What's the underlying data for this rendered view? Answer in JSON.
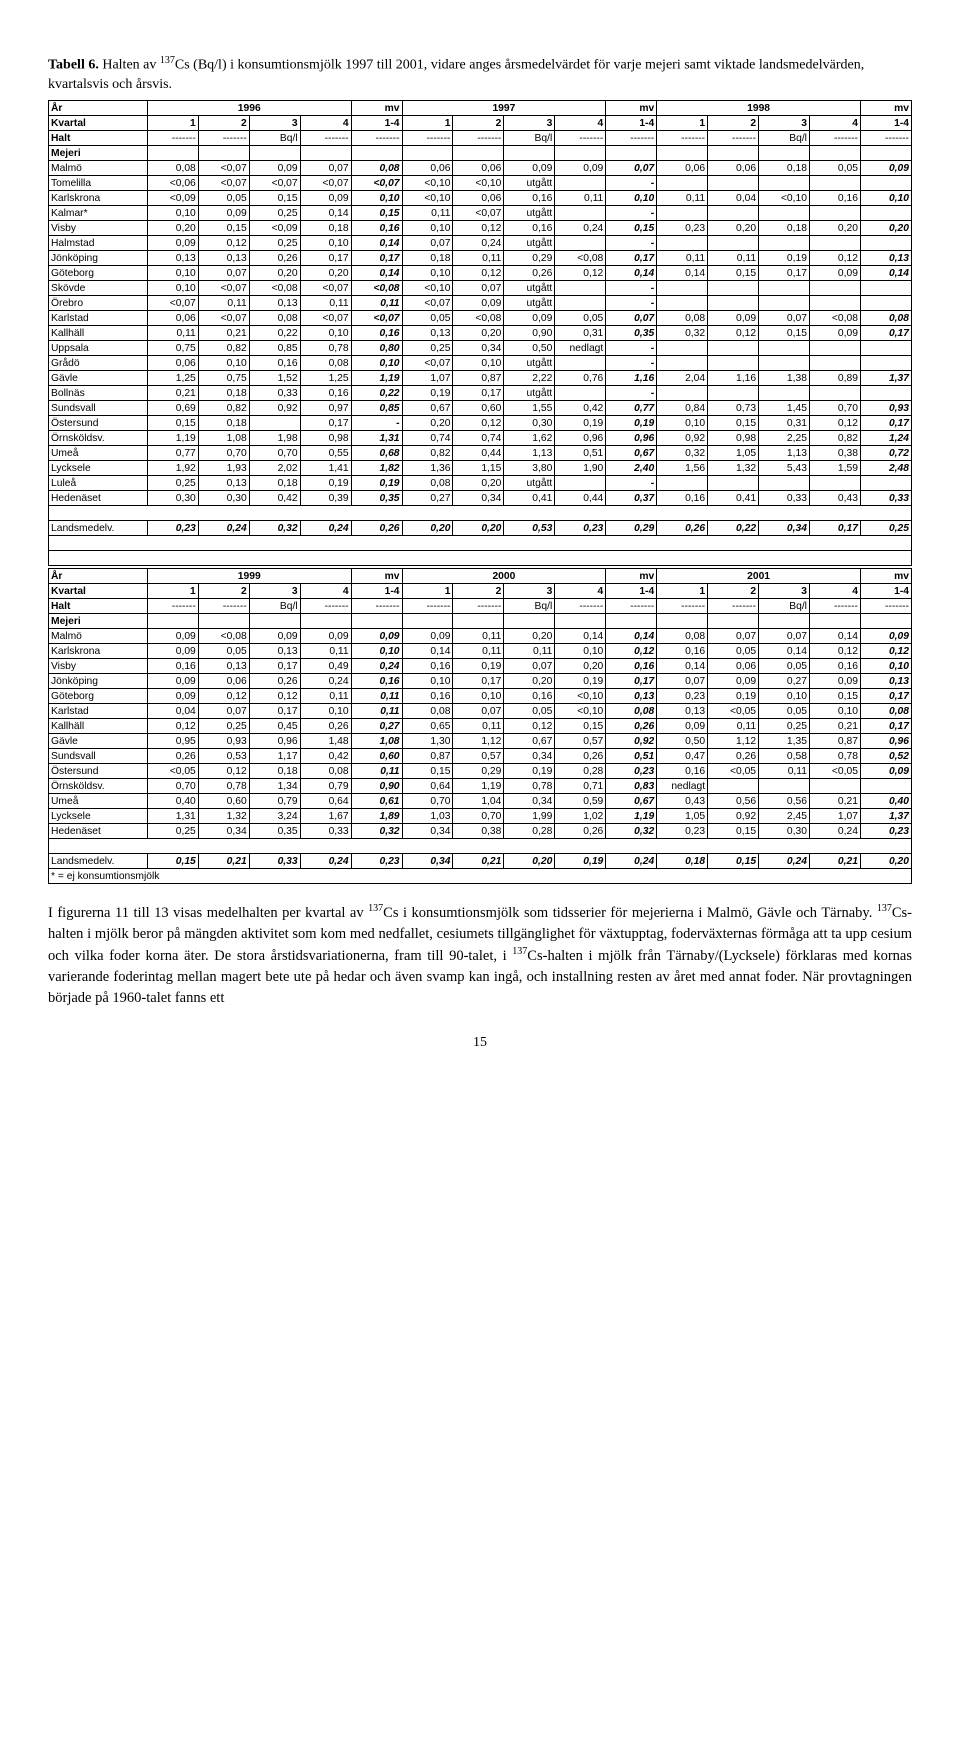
{
  "caption_bold": "Tabell 6.",
  "caption_rest_a": " Halten av ",
  "caption_cs": "137",
  "caption_rest_b": "Cs (Bq/l) i konsumtionsmjölk 1997 till 2001, vidare anges årsmedelvärdet för varje mejeri samt viktade landsmedelvärden, kvartalsvis och årsvis.",
  "header": {
    "year_label": "År",
    "quarter_label": "Kvartal",
    "halt_label": "Halt",
    "mejeri_label": "Mejeri",
    "mv": "mv",
    "quarters": [
      "1",
      "2",
      "3",
      "4",
      "1-4"
    ],
    "bq": "Bq/l",
    "dash": "-------"
  },
  "table1": {
    "years": [
      "1996",
      "1997",
      "1998"
    ],
    "rows": [
      {
        "name": "Malmö",
        "a": [
          "0,08",
          "<0,07",
          "0,09",
          "0,07",
          "0,08"
        ],
        "b": [
          "0,06",
          "0,06",
          "0,09",
          "0,09",
          "0,07"
        ],
        "c": [
          "0,06",
          "0,06",
          "0,18",
          "0,05",
          "0,09"
        ]
      },
      {
        "name": "Tomelilla",
        "a": [
          "<0,06",
          "<0,07",
          "<0,07",
          "<0,07",
          "<0,07"
        ],
        "b": [
          "<0,10",
          "<0,10",
          "utgått",
          "",
          "-"
        ],
        "c": [
          "",
          "",
          "",
          "",
          ""
        ]
      },
      {
        "name": "Karlskrona",
        "a": [
          "<0,09",
          "0,05",
          "0,15",
          "0,09",
          "0,10"
        ],
        "b": [
          "<0,10",
          "0,06",
          "0,16",
          "0,11",
          "0,10"
        ],
        "c": [
          "0,11",
          "0,04",
          "<0,10",
          "0,16",
          "0,10"
        ]
      },
      {
        "name": "Kalmar*",
        "a": [
          "0,10",
          "0,09",
          "0,25",
          "0,14",
          "0,15"
        ],
        "b": [
          "0,11",
          "<0,07",
          "utgått",
          "",
          "-"
        ],
        "c": [
          "",
          "",
          "",
          "",
          ""
        ]
      },
      {
        "name": "Visby",
        "a": [
          "0,20",
          "0,15",
          "<0,09",
          "0,18",
          "0,16"
        ],
        "b": [
          "0,10",
          "0,12",
          "0,16",
          "0,24",
          "0,15"
        ],
        "c": [
          "0,23",
          "0,20",
          "0,18",
          "0,20",
          "0,20"
        ]
      },
      {
        "name": "Halmstad",
        "a": [
          "0,09",
          "0,12",
          "0,25",
          "0,10",
          "0,14"
        ],
        "b": [
          "0,07",
          "0,24",
          "utgått",
          "",
          "-"
        ],
        "c": [
          "",
          "",
          "",
          "",
          ""
        ]
      },
      {
        "name": "Jönköping",
        "a": [
          "0,13",
          "0,13",
          "0,26",
          "0,17",
          "0,17"
        ],
        "b": [
          "0,18",
          "0,11",
          "0,29",
          "<0,08",
          "0,17"
        ],
        "c": [
          "0,11",
          "0,11",
          "0,19",
          "0,12",
          "0,13"
        ]
      },
      {
        "name": "Göteborg",
        "a": [
          "0,10",
          "0,07",
          "0,20",
          "0,20",
          "0,14"
        ],
        "b": [
          "0,10",
          "0,12",
          "0,26",
          "0,12",
          "0,14"
        ],
        "c": [
          "0,14",
          "0,15",
          "0,17",
          "0,09",
          "0,14"
        ]
      },
      {
        "name": "Skövde",
        "a": [
          "0,10",
          "<0,07",
          "<0,08",
          "<0,07",
          "<0,08"
        ],
        "b": [
          "<0,10",
          "0,07",
          "utgått",
          "",
          "-"
        ],
        "c": [
          "",
          "",
          "",
          "",
          ""
        ]
      },
      {
        "name": "Örebro",
        "a": [
          "<0,07",
          "0,11",
          "0,13",
          "0,11",
          "0,11"
        ],
        "b": [
          "<0,07",
          "0,09",
          "utgått",
          "",
          "-"
        ],
        "c": [
          "",
          "",
          "",
          "",
          ""
        ]
      },
      {
        "name": "Karlstad",
        "a": [
          "0,06",
          "<0,07",
          "0,08",
          "<0,07",
          "<0,07"
        ],
        "b": [
          "0,05",
          "<0,08",
          "0,09",
          "0,05",
          "0,07"
        ],
        "c": [
          "0,08",
          "0,09",
          "0,07",
          "<0,08",
          "0,08"
        ]
      },
      {
        "name": "Kallhäll",
        "a": [
          "0,11",
          "0,21",
          "0,22",
          "0,10",
          "0,16"
        ],
        "b": [
          "0,13",
          "0,20",
          "0,90",
          "0,31",
          "0,35"
        ],
        "c": [
          "0,32",
          "0,12",
          "0,15",
          "0,09",
          "0,17"
        ]
      },
      {
        "name": "Uppsala",
        "a": [
          "0,75",
          "0,82",
          "0,85",
          "0,78",
          "0,80"
        ],
        "b": [
          "0,25",
          "0,34",
          "0,50",
          "nedlagt",
          "-"
        ],
        "c": [
          "",
          "",
          "",
          "",
          ""
        ]
      },
      {
        "name": "Grådö",
        "a": [
          "0,06",
          "0,10",
          "0,16",
          "0,08",
          "0,10"
        ],
        "b": [
          "<0,07",
          "0,10",
          "utgått",
          "",
          "-"
        ],
        "c": [
          "",
          "",
          "",
          "",
          ""
        ]
      },
      {
        "name": "Gävle",
        "a": [
          "1,25",
          "0,75",
          "1,52",
          "1,25",
          "1,19"
        ],
        "b": [
          "1,07",
          "0,87",
          "2,22",
          "0,76",
          "1,16"
        ],
        "c": [
          "2,04",
          "1,16",
          "1,38",
          "0,89",
          "1,37"
        ]
      },
      {
        "name": "Bollnäs",
        "a": [
          "0,21",
          "0,18",
          "0,33",
          "0,16",
          "0,22"
        ],
        "b": [
          "0,19",
          "0,17",
          "utgått",
          "",
          "-"
        ],
        "c": [
          "",
          "",
          "",
          "",
          ""
        ]
      },
      {
        "name": "Sundsvall",
        "a": [
          "0,69",
          "0,82",
          "0,92",
          "0,97",
          "0,85"
        ],
        "b": [
          "0,67",
          "0,60",
          "1,55",
          "0,42",
          "0,77"
        ],
        "c": [
          "0,84",
          "0,73",
          "1,45",
          "0,70",
          "0,93"
        ]
      },
      {
        "name": "Östersund",
        "a": [
          "0,15",
          "0,18",
          "",
          "0,17",
          "-"
        ],
        "b": [
          "0,20",
          "0,12",
          "0,30",
          "0,19",
          "0,19"
        ],
        "c": [
          "0,10",
          "0,15",
          "0,31",
          "0,12",
          "0,17"
        ]
      },
      {
        "name": "Örnsköldsv.",
        "a": [
          "1,19",
          "1,08",
          "1,98",
          "0,98",
          "1,31"
        ],
        "b": [
          "0,74",
          "0,74",
          "1,62",
          "0,96",
          "0,96"
        ],
        "c": [
          "0,92",
          "0,98",
          "2,25",
          "0,82",
          "1,24"
        ]
      },
      {
        "name": "Umeå",
        "a": [
          "0,77",
          "0,70",
          "0,70",
          "0,55",
          "0,68"
        ],
        "b": [
          "0,82",
          "0,44",
          "1,13",
          "0,51",
          "0,67"
        ],
        "c": [
          "0,32",
          "1,05",
          "1,13",
          "0,38",
          "0,72"
        ]
      },
      {
        "name": "Lycksele",
        "a": [
          "1,92",
          "1,93",
          "2,02",
          "1,41",
          "1,82"
        ],
        "b": [
          "1,36",
          "1,15",
          "3,80",
          "1,90",
          "2,40"
        ],
        "c": [
          "1,56",
          "1,32",
          "5,43",
          "1,59",
          "2,48"
        ]
      },
      {
        "name": "Luleå",
        "a": [
          "0,25",
          "0,13",
          "0,18",
          "0,19",
          "0,19"
        ],
        "b": [
          "0,08",
          "0,20",
          "utgått",
          "",
          "-"
        ],
        "c": [
          "",
          "",
          "",
          "",
          ""
        ]
      },
      {
        "name": "Hedenäset",
        "a": [
          "0,30",
          "0,30",
          "0,42",
          "0,39",
          "0,35"
        ],
        "b": [
          "0,27",
          "0,34",
          "0,41",
          "0,44",
          "0,37"
        ],
        "c": [
          "0,16",
          "0,41",
          "0,33",
          "0,43",
          "0,33"
        ]
      }
    ],
    "landsmedel": {
      "name": "Landsmedelv.",
      "a": [
        "0,23",
        "0,24",
        "0,32",
        "0,24",
        "0,26"
      ],
      "b": [
        "0,20",
        "0,20",
        "0,53",
        "0,23",
        "0,29"
      ],
      "c": [
        "0,26",
        "0,22",
        "0,34",
        "0,17",
        "0,25"
      ]
    }
  },
  "table2": {
    "years": [
      "1999",
      "2000",
      "2001"
    ],
    "rows": [
      {
        "name": "Malmö",
        "a": [
          "0,09",
          "<0,08",
          "0,09",
          "0,09",
          "0,09"
        ],
        "b": [
          "0,09",
          "0,11",
          "0,20",
          "0,14",
          "0,14"
        ],
        "c": [
          "0,08",
          "0,07",
          "0,07",
          "0,14",
          "0,09"
        ]
      },
      {
        "name": "Karlskrona",
        "a": [
          "0,09",
          "0,05",
          "0,13",
          "0,11",
          "0,10"
        ],
        "b": [
          "0,14",
          "0,11",
          "0,11",
          "0,10",
          "0,12"
        ],
        "c": [
          "0,16",
          "0,05",
          "0,14",
          "0,12",
          "0,12"
        ]
      },
      {
        "name": "Visby",
        "a": [
          "0,16",
          "0,13",
          "0,17",
          "0,49",
          "0,24"
        ],
        "b": [
          "0,16",
          "0,19",
          "0,07",
          "0,20",
          "0,16"
        ],
        "c": [
          "0,14",
          "0,06",
          "0,05",
          "0,16",
          "0,10"
        ]
      },
      {
        "name": "Jönköping",
        "a": [
          "0,09",
          "0,06",
          "0,26",
          "0,24",
          "0,16"
        ],
        "b": [
          "0,10",
          "0,17",
          "0,20",
          "0,19",
          "0,17"
        ],
        "c": [
          "0,07",
          "0,09",
          "0,27",
          "0,09",
          "0,13"
        ]
      },
      {
        "name": "Göteborg",
        "a": [
          "0,09",
          "0,12",
          "0,12",
          "0,11",
          "0,11"
        ],
        "b": [
          "0,16",
          "0,10",
          "0,16",
          "<0,10",
          "0,13"
        ],
        "c": [
          "0,23",
          "0,19",
          "0,10",
          "0,15",
          "0,17"
        ]
      },
      {
        "name": "Karlstad",
        "a": [
          "0,04",
          "0,07",
          "0,17",
          "0,10",
          "0,11"
        ],
        "b": [
          "0,08",
          "0,07",
          "0,05",
          "<0,10",
          "0,08"
        ],
        "c": [
          "0,13",
          "<0,05",
          "0,05",
          "0,10",
          "0,08"
        ]
      },
      {
        "name": "Kallhäll",
        "a": [
          "0,12",
          "0,25",
          "0,45",
          "0,26",
          "0,27"
        ],
        "b": [
          "0,65",
          "0,11",
          "0,12",
          "0,15",
          "0,26"
        ],
        "c": [
          "0,09",
          "0,11",
          "0,25",
          "0,21",
          "0,17"
        ]
      },
      {
        "name": "Gävle",
        "a": [
          "0,95",
          "0,93",
          "0,96",
          "1,48",
          "1,08"
        ],
        "b": [
          "1,30",
          "1,12",
          "0,67",
          "0,57",
          "0,92"
        ],
        "c": [
          "0,50",
          "1,12",
          "1,35",
          "0,87",
          "0,96"
        ]
      },
      {
        "name": "Sundsvall",
        "a": [
          "0,26",
          "0,53",
          "1,17",
          "0,42",
          "0,60"
        ],
        "b": [
          "0,87",
          "0,57",
          "0,34",
          "0,26",
          "0,51"
        ],
        "c": [
          "0,47",
          "0,26",
          "0,58",
          "0,78",
          "0,52"
        ]
      },
      {
        "name": "Östersund",
        "a": [
          "<0,05",
          "0,12",
          "0,18",
          "0,08",
          "0,11"
        ],
        "b": [
          "0,15",
          "0,29",
          "0,19",
          "0,28",
          "0,23"
        ],
        "c": [
          "0,16",
          "<0,05",
          "0,11",
          "<0,05",
          "0,09"
        ]
      },
      {
        "name": "Örnsköldsv.",
        "a": [
          "0,70",
          "0,78",
          "1,34",
          "0,79",
          "0,90"
        ],
        "b": [
          "0,64",
          "1,19",
          "0,78",
          "0,71",
          "0,83"
        ],
        "c": [
          "nedlagt",
          "",
          "",
          "",
          ""
        ]
      },
      {
        "name": "Umeå",
        "a": [
          "0,40",
          "0,60",
          "0,79",
          "0,64",
          "0,61"
        ],
        "b": [
          "0,70",
          "1,04",
          "0,34",
          "0,59",
          "0,67"
        ],
        "c": [
          "0,43",
          "0,56",
          "0,56",
          "0,21",
          "0,40"
        ]
      },
      {
        "name": "Lycksele",
        "a": [
          "1,31",
          "1,32",
          "3,24",
          "1,67",
          "1,89"
        ],
        "b": [
          "1,03",
          "0,70",
          "1,99",
          "1,02",
          "1,19"
        ],
        "c": [
          "1,05",
          "0,92",
          "2,45",
          "1,07",
          "1,37"
        ]
      },
      {
        "name": "Hedenäset",
        "a": [
          "0,25",
          "0,34",
          "0,35",
          "0,33",
          "0,32"
        ],
        "b": [
          "0,34",
          "0,38",
          "0,28",
          "0,26",
          "0,32"
        ],
        "c": [
          "0,23",
          "0,15",
          "0,30",
          "0,24",
          "0,23"
        ]
      }
    ],
    "landsmedel": {
      "name": "Landsmedelv.",
      "a": [
        "0,15",
        "0,21",
        "0,33",
        "0,24",
        "0,23"
      ],
      "b": [
        "0,34",
        "0,21",
        "0,20",
        "0,19",
        "0,24"
      ],
      "c": [
        "0,18",
        "0,15",
        "0,24",
        "0,21",
        "0,20"
      ]
    },
    "footnote": "* = ej konsumtionsmjölk"
  },
  "para_a": "I figurerna 11 till 13 visas medelhalten per kvartal av ",
  "para_b": "Cs i konsumtionsmjölk som tidsserier för mejerierna i Malmö, Gävle och Tärnaby. ",
  "para_c": "Cs-halten i mjölk beror på mängden aktivitet som kom med nedfallet, cesiumets tillgänglighet för växtupptag, foderväxternas förmåga att ta upp cesium och vilka foder korna äter. De stora årstidsvariationerna, fram till 90-talet, i ",
  "para_d": "Cs-halten i mjölk från Tärnaby/(Lycksele) förklaras med kornas varierande foderintag mellan magert bete ute på hedar och även svamp kan ingå, och installning resten av året med annat foder. När provtagningen började på 1960-talet fanns ett",
  "pagenum": "15"
}
